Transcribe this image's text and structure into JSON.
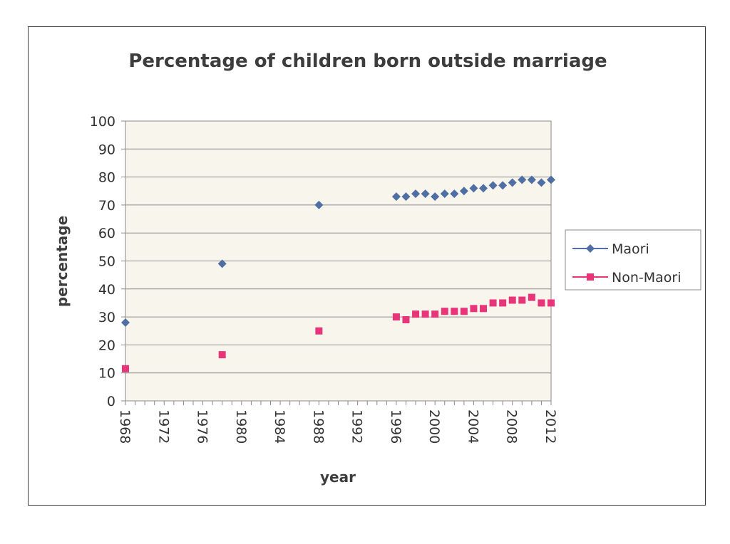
{
  "chart_data": {
    "type": "scatter",
    "title": "Percentage of children born outside marriage",
    "xlabel": "year",
    "ylabel": "percentage",
    "xlim": [
      1968,
      2012
    ],
    "ylim": [
      0,
      100
    ],
    "x_ticks": [
      "1968",
      "1972",
      "1976",
      "1980",
      "1984",
      "1988",
      "1992",
      "1996",
      "2000",
      "2004",
      "2008",
      "2012"
    ],
    "y_ticks": [
      "0",
      "10",
      "20",
      "30",
      "40",
      "50",
      "60",
      "70",
      "80",
      "90",
      "100"
    ],
    "grid": true,
    "legend_position": "right",
    "series": [
      {
        "name": "Maori",
        "color": "#4f6ea3",
        "marker": "diamond",
        "x": [
          1968,
          1978,
          1988,
          1996,
          1997,
          1998,
          1999,
          2000,
          2001,
          2002,
          2003,
          2004,
          2005,
          2006,
          2007,
          2008,
          2009,
          2010,
          2011,
          2012
        ],
        "y": [
          28,
          49,
          70,
          73,
          73,
          74,
          74,
          73,
          74,
          74,
          75,
          76,
          76,
          77,
          77,
          78,
          79,
          79,
          78,
          79
        ]
      },
      {
        "name": "Non-Maori",
        "color": "#e8357a",
        "marker": "square",
        "x": [
          1968,
          1978,
          1988,
          1996,
          1997,
          1998,
          1999,
          2000,
          2001,
          2002,
          2003,
          2004,
          2005,
          2006,
          2007,
          2008,
          2009,
          2010,
          2011,
          2012
        ],
        "y": [
          11.5,
          16.5,
          25,
          30,
          29,
          31,
          31,
          31,
          32,
          32,
          32,
          33,
          33,
          35,
          35,
          36,
          36,
          37,
          35,
          35
        ]
      }
    ]
  }
}
